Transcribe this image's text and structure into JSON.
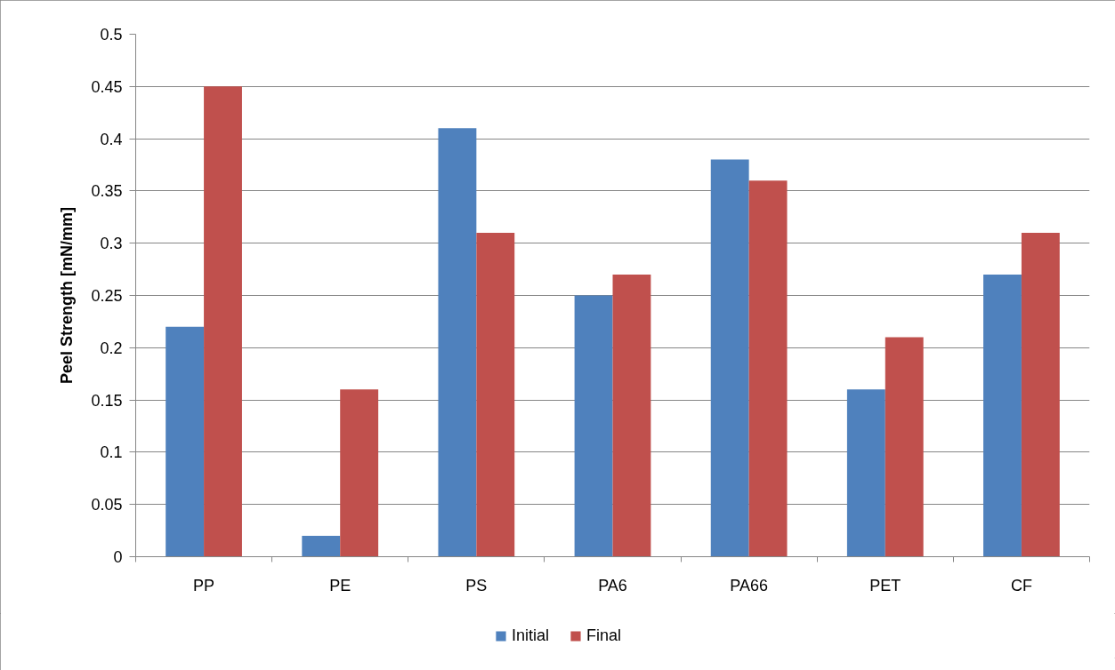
{
  "chart_data": {
    "type": "bar",
    "categories": [
      "PP",
      "PE",
      "PS",
      "PA6",
      "PA66",
      "PET",
      "CF"
    ],
    "ylabel": "Peel Strength [mN/mm]",
    "ylim": [
      0,
      0.5
    ],
    "yticks": [
      0,
      0.05,
      0.1,
      0.15,
      0.2,
      0.25,
      0.3,
      0.35,
      0.4,
      0.45,
      0.5
    ],
    "grid": "y",
    "legend": "bottom",
    "series": [
      {
        "name": "Initial",
        "color": "#4f81bd",
        "values": [
          0.22,
          0.02,
          0.41,
          0.25,
          0.38,
          0.16,
          0.27
        ]
      },
      {
        "name": "Final",
        "color": "#c0504d",
        "values": [
          0.45,
          0.16,
          0.31,
          0.27,
          0.36,
          0.21,
          0.31
        ]
      }
    ]
  }
}
